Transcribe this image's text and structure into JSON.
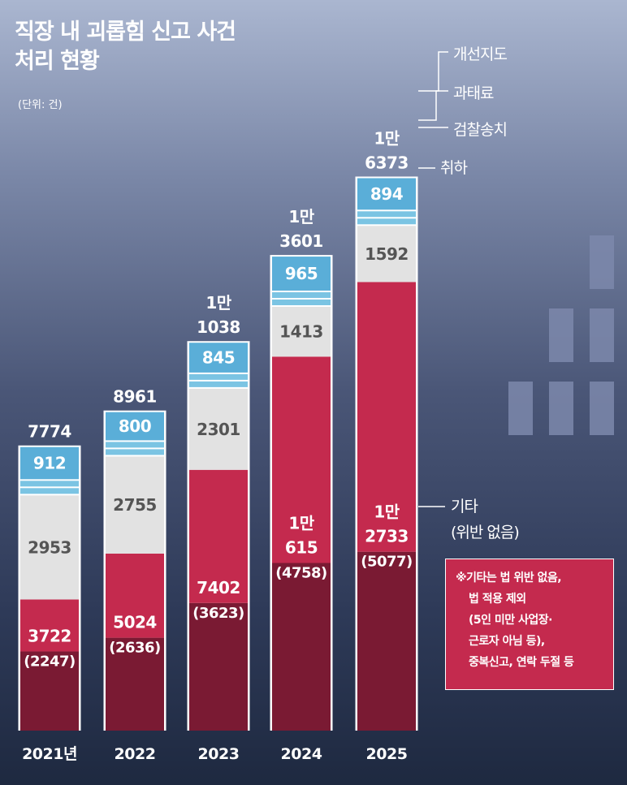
{
  "title_lines": [
    "직장 내 괴롭힘 신고 사건",
    "처리 현황"
  ],
  "unit": "(단위: 건)",
  "colors": {
    "other_dark": "#7a1a33",
    "other": "#c42a4e",
    "withdrawal": "#e2e2e2",
    "referral": "#7bc4e3",
    "fine": "#7bc4e3",
    "correction": "#5aaed8"
  },
  "chart_data": {
    "type": "bar",
    "stacked": true,
    "categories": [
      "2021년",
      "2022",
      "2023",
      "2024",
      "2025"
    ],
    "totals": [
      7774,
      8961,
      11038,
      13601,
      16373
    ],
    "total_labels": [
      [
        "7774"
      ],
      [
        "8961"
      ],
      [
        "1만",
        "1038"
      ],
      [
        "1만",
        "3601"
      ],
      [
        "1만",
        "6373"
      ]
    ],
    "series": [
      {
        "name": "기타",
        "values": [
          3722,
          5024,
          7402,
          10615,
          12733
        ],
        "labels": [
          [
            "3722"
          ],
          [
            "5024"
          ],
          [
            "7402"
          ],
          [
            "1만",
            "615"
          ],
          [
            "1만",
            "2733"
          ]
        ],
        "sub_values": [
          2247,
          2636,
          3623,
          4758,
          5077
        ],
        "sub_labels": [
          "(2247)",
          "(2636)",
          "(3623)",
          "(4758)",
          "(5077)"
        ]
      },
      {
        "name": "취하",
        "values": [
          2953,
          2755,
          2301,
          1413,
          1592
        ],
        "labels": [
          [
            "2953"
          ],
          [
            "2755"
          ],
          [
            "2301"
          ],
          [
            "1413"
          ],
          [
            "1592"
          ]
        ]
      },
      {
        "name": "검찰송치",
        "values": [
          null,
          null,
          null,
          null,
          null
        ]
      },
      {
        "name": "과태료",
        "values": [
          null,
          null,
          null,
          null,
          null
        ]
      },
      {
        "name": "개선지도",
        "values": [
          912,
          800,
          845,
          965,
          894
        ],
        "labels": [
          [
            "912"
          ],
          [
            "800"
          ],
          [
            "845"
          ],
          [
            "965"
          ],
          [
            "894"
          ]
        ]
      }
    ],
    "legend_labels": [
      "개선지도",
      "과태료",
      "검찰송치",
      "취하"
    ],
    "other_label": [
      "기타",
      "(위반 없음)"
    ]
  },
  "note_lines": [
    "※기타는 법 위반 없음,",
    "법 적용 제외",
    "(5인 미만 사업장·",
    "근로자 아님 등),",
    "중복신고, 연락 두절 등"
  ]
}
